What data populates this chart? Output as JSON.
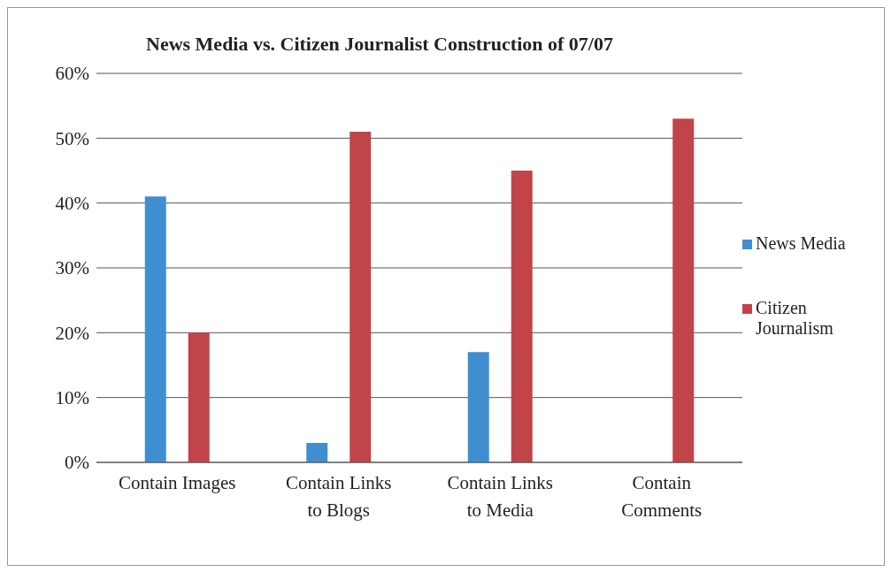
{
  "chart_data": {
    "type": "bar",
    "title": "News Media vs. Citizen Journalist Construction of 07/07",
    "categories": [
      "Contain Images",
      "Contain Links to Blogs",
      "Contain Links to Media",
      "Contain Comments"
    ],
    "series": [
      {
        "name": "News Media",
        "color": "#3f8fd0",
        "values": [
          0.41,
          0.03,
          0.17,
          0
        ]
      },
      {
        "name": "Citizen Journalism",
        "color": "#c0444a",
        "values": [
          0.2,
          0.51,
          0.45,
          0.53
        ]
      }
    ],
    "ylim": [
      0,
      0.6
    ],
    "yticks": [
      {
        "value": 0,
        "label": "0%"
      },
      {
        "value": 0.1,
        "label": "10%"
      },
      {
        "value": 0.2,
        "label": "20%"
      },
      {
        "value": 0.3,
        "label": "30%"
      },
      {
        "value": 0.4,
        "label": "40%"
      },
      {
        "value": 0.5,
        "label": "50%"
      },
      {
        "value": 0.6,
        "label": "60%"
      }
    ],
    "grid": "y",
    "legend": "right"
  }
}
